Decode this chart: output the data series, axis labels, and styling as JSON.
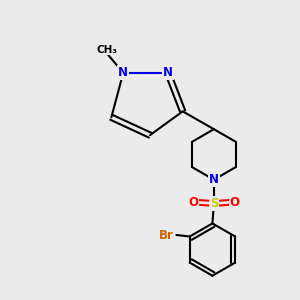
{
  "background_color": "#ebebeb",
  "atom_colors": {
    "N": "#0000ee",
    "O": "#ff0000",
    "S": "#cccc00",
    "Br": "#cc6600",
    "C": "#000000"
  },
  "bond_color": "#000000",
  "bond_width": 1.5,
  "font_size_atoms": 8.5,
  "font_size_methyl": 7.5
}
